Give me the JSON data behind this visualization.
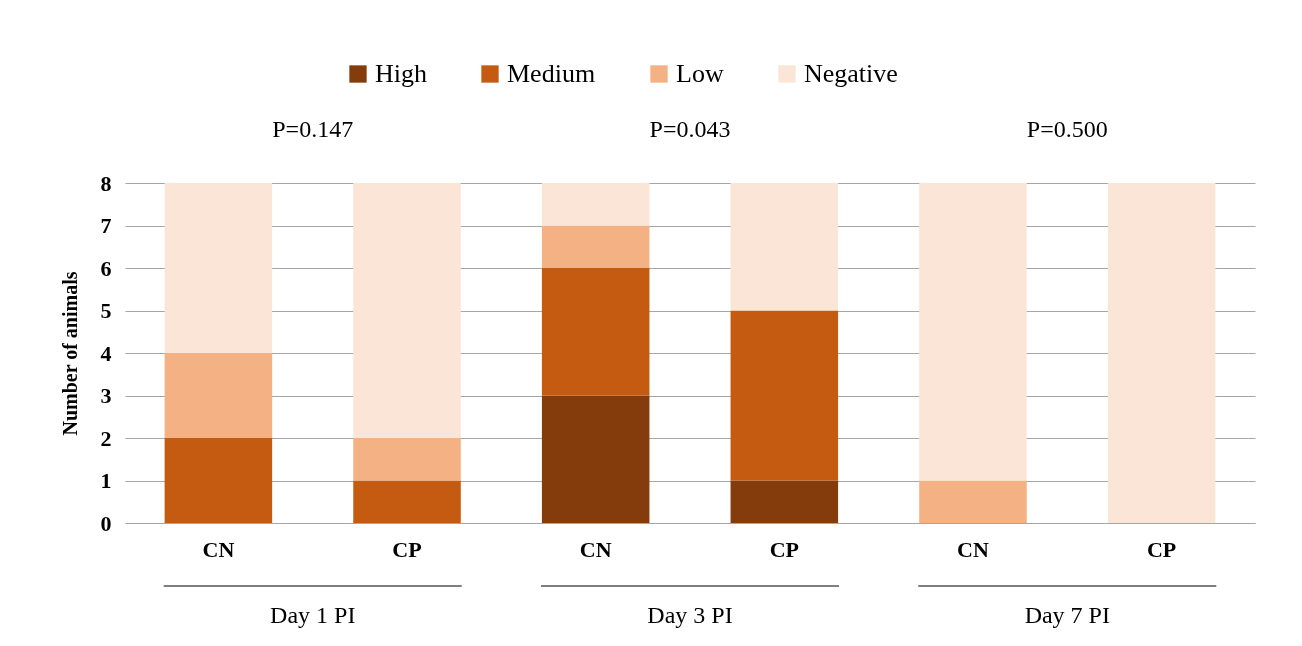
{
  "chart_data": {
    "type": "bar",
    "stacked": true,
    "ylabel": "Number of animals",
    "categories": [
      "CN",
      "CP",
      "CN",
      "CP",
      "CN",
      "CP"
    ],
    "series": [
      {
        "name": "High",
        "color": "#843c0c",
        "values": [
          0,
          0,
          3,
          1,
          0,
          0
        ]
      },
      {
        "name": "Medium",
        "color": "#c55a11",
        "values": [
          2,
          1,
          3,
          4,
          0,
          0
        ]
      },
      {
        "name": "Low",
        "color": "#f4b183",
        "values": [
          2,
          1,
          1,
          0,
          1,
          0
        ]
      },
      {
        "name": "Negative",
        "color": "#fbe5d6",
        "values": [
          4,
          6,
          1,
          3,
          7,
          8
        ]
      }
    ],
    "ylim": [
      0,
      8
    ],
    "yticks": [
      0,
      1,
      2,
      3,
      4,
      5,
      6,
      7,
      8
    ],
    "grid": "y",
    "legend": "top",
    "annotations": [
      "P=0.147",
      "P=0.043",
      "P=0.500",
      "Day 1 PI",
      "Day 3 PI",
      "Day 7 PI"
    ]
  }
}
